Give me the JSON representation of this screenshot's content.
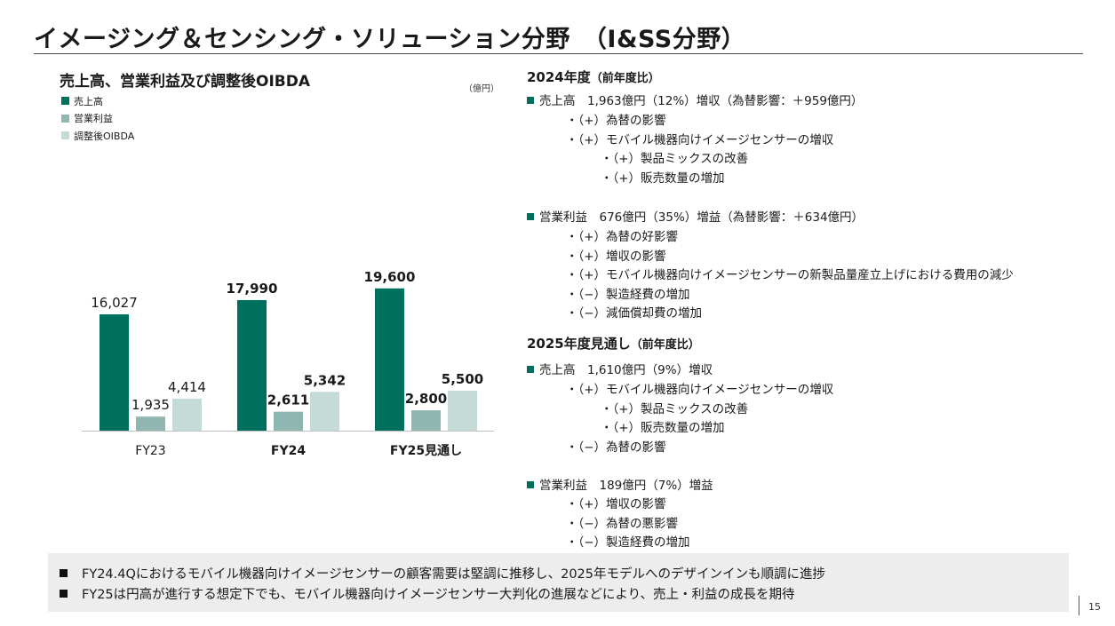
{
  "page": {
    "title": "イメージング＆センシング・ソリューション分野　（I&SS分野）",
    "page_number": "15"
  },
  "colors": {
    "sales": "#00705e",
    "op_income": "#8fb6b0",
    "oibda": "#c4dbd7",
    "accent_bullet": "#006e5e"
  },
  "chart": {
    "heading": "売上高、営業利益及び調整後OIBDA",
    "unit": "（億円）"
  },
  "chart_data": {
    "type": "bar",
    "title": "売上高、営業利益及び調整後OIBDA",
    "unit": "（億円）",
    "categories": [
      "FY23",
      "FY24",
      "FY25見通し"
    ],
    "category_bold": [
      false,
      true,
      true
    ],
    "series": [
      {
        "name": "売上高",
        "values": [
          16027,
          17990,
          19600
        ],
        "labels": [
          "16,027",
          "17,990",
          "19,600"
        ]
      },
      {
        "name": "営業利益",
        "values": [
          1935,
          2611,
          2800
        ],
        "labels": [
          "1,935",
          "2,611",
          "2,800"
        ]
      },
      {
        "name": "調整後OIBDA",
        "values": [
          4414,
          5342,
          5500
        ],
        "labels": [
          "4,414",
          "5,342",
          "5,500"
        ]
      }
    ],
    "legend_position": "top-left",
    "ylim": [
      0,
      22000
    ],
    "grid": false
  },
  "right": {
    "fy24": {
      "heading": "2024年度",
      "heading_sub": "（前年度比）",
      "sales_summary": "売上高　1,963億円（12%）増収（為替影響：＋959億円）",
      "sales_items": [
        {
          "level": 2,
          "text": "・（+）為替の影響"
        },
        {
          "level": 2,
          "text": "・（+）モバイル機器向けイメージセンサーの増収"
        },
        {
          "level": 3,
          "text": "・（+）製品ミックスの改善"
        },
        {
          "level": 3,
          "text": "・（+）販売数量の増加"
        }
      ],
      "op_summary": "営業利益　676億円（35%）増益（為替影響：＋634億円）",
      "op_items": [
        {
          "level": 2,
          "text": "・（+）為替の好影響"
        },
        {
          "level": 2,
          "text": "・（+）増収の影響"
        },
        {
          "level": 2,
          "text": "・（+）モバイル機器向けイメージセンサーの新製品量産立上げにおける費用の減少"
        },
        {
          "level": 2,
          "text": "・（−）製造経費の増加"
        },
        {
          "level": 2,
          "text": "・（−）減価償却費の増加"
        }
      ]
    },
    "fy25": {
      "heading": "2025年度見通し",
      "heading_sub": "（前年度比）",
      "sales_summary": "売上高　1,610億円（9%）増収",
      "sales_items": [
        {
          "level": 2,
          "text": "・（+）モバイル機器向けイメージセンサーの増収"
        },
        {
          "level": 3,
          "text": "・（+）製品ミックスの改善"
        },
        {
          "level": 3,
          "text": "・（+）販売数量の増加"
        },
        {
          "level": 2,
          "text": "・（−）為替の影響"
        }
      ],
      "op_summary": "営業利益　189億円（7%）増益",
      "op_items": [
        {
          "level": 2,
          "text": "・（+）増収の影響"
        },
        {
          "level": 2,
          "text": "・（−）為替の悪影響"
        },
        {
          "level": 2,
          "text": "・（−）製造経費の増加"
        }
      ]
    }
  },
  "bottom": {
    "lines": [
      "FY24.4Qにおけるモバイル機器向けイメージセンサーの顧客需要は堅調に推移し、2025年モデルへのデザインインも順調に進捗",
      "FY25は円高が進行する想定下でも、モバイル機器向けイメージセンサー大判化の進展などにより、売上・利益の成長を期待"
    ]
  }
}
